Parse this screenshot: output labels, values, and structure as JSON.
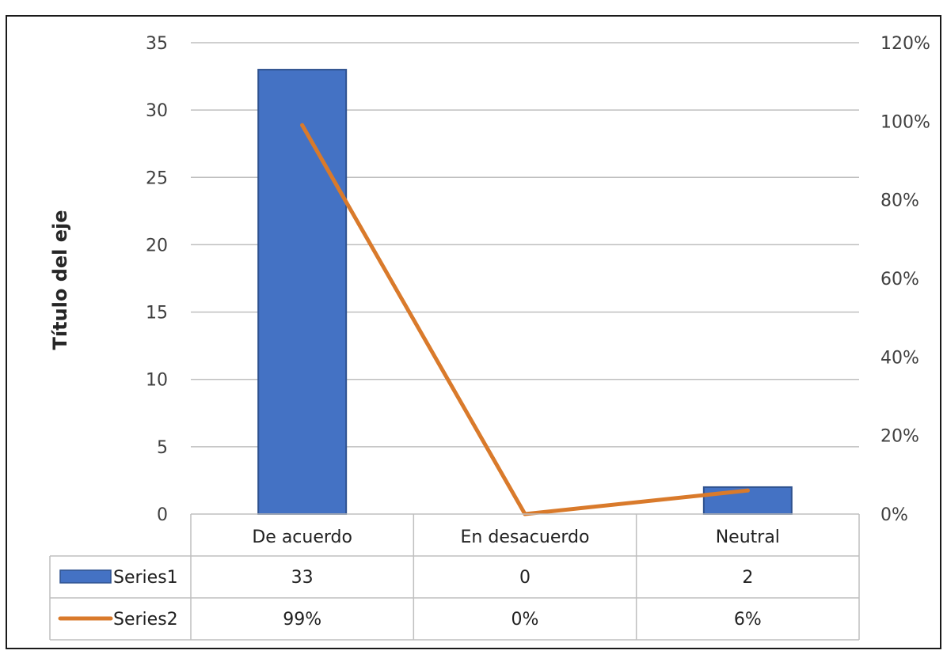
{
  "caption": "",
  "chart_data": {
    "type": "bar",
    "categories": [
      "De acuerdo",
      "En desacuerdo",
      "Neutral"
    ],
    "series": [
      {
        "name": "Series1",
        "type": "bar",
        "axis": "left",
        "values": [
          33,
          0,
          2
        ],
        "labels": [
          "33",
          "0",
          "2"
        ]
      },
      {
        "name": "Series2",
        "type": "line",
        "axis": "right",
        "values": [
          99,
          0,
          6
        ],
        "labels": [
          "99%",
          "0%",
          "6%"
        ]
      }
    ],
    "title": "",
    "ylabel": "Título del eje",
    "ylim": [
      0,
      35
    ],
    "y_ticks": [
      "0",
      "5",
      "10",
      "15",
      "20",
      "25",
      "30",
      "35"
    ],
    "y2lim": [
      0,
      120
    ],
    "y2_ticks": [
      "0%",
      "20%",
      "40%",
      "60%",
      "80%",
      "100%",
      "120%"
    ],
    "grid": true,
    "legend": "data-table",
    "colors": {
      "series1": "#4472C4",
      "series1_edge": "#2F528F",
      "series2": "#D97A2B",
      "grid": "#BFBFBF",
      "table_border": "#BFBFBF"
    }
  }
}
